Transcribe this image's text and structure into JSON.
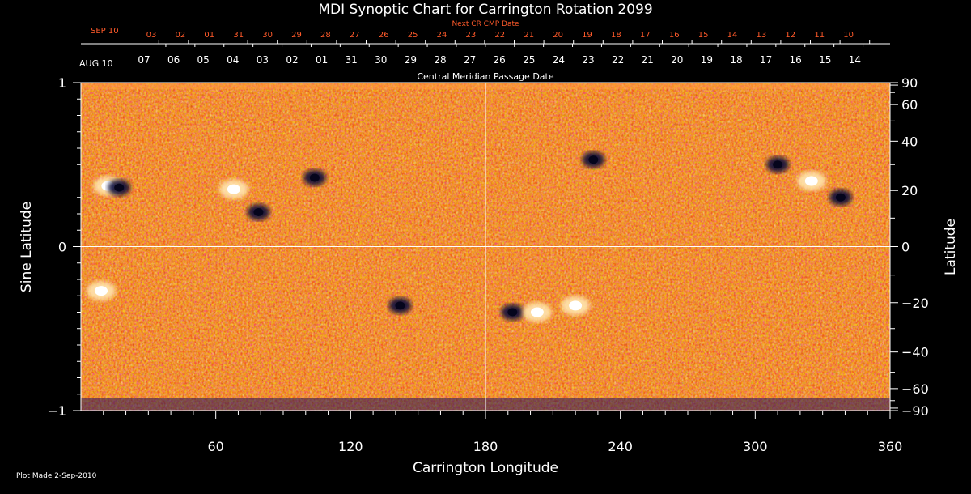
{
  "chart_data": {
    "type": "heatmap",
    "title": "MDI Synoptic Chart for Carrington Rotation 2099",
    "xlabel": "Carrington Longitude",
    "ylabel_left": "Sine Latitude",
    "ylabel_right": "Latitude",
    "xlim": [
      0,
      360
    ],
    "ylim": [
      -1,
      1
    ],
    "x_ticks": [
      60,
      120,
      180,
      240,
      300,
      360
    ],
    "y_ticks_left": [
      -1,
      0,
      1
    ],
    "y_ticks_left_labels": [
      "−1",
      "0",
      "1"
    ],
    "y_ticks_right": [
      90,
      60,
      40,
      20,
      0,
      -20,
      -40,
      -60,
      -90
    ],
    "y_ticks_right_labels": [
      "90",
      "60",
      "40",
      "20",
      "0",
      "−20",
      "−40",
      "−60",
      "−90"
    ],
    "colormap": [
      "#0a0a40",
      "#d42a00",
      "#ff7a1a",
      "#ffd270",
      "#ffffff"
    ],
    "grid_lines": {
      "longitude": 180,
      "sine_latitude": 0
    },
    "top_axis_primary": {
      "label": "Central Meridian Passage Date",
      "start_label": "AUG 10",
      "labels": [
        "07",
        "06",
        "05",
        "04",
        "03",
        "02",
        "01",
        "31",
        "30",
        "29",
        "28",
        "27",
        "26",
        "25",
        "24",
        "23",
        "22",
        "21",
        "20",
        "19",
        "18",
        "17",
        "16",
        "15",
        "14"
      ]
    },
    "top_axis_secondary": {
      "label": "Next CR CMP Date",
      "start_label": "SEP 10",
      "labels": [
        "03",
        "02",
        "01",
        "31",
        "30",
        "29",
        "28",
        "27",
        "26",
        "25",
        "24",
        "23",
        "22",
        "21",
        "20",
        "19",
        "18",
        "17",
        "16",
        "15",
        "14",
        "13",
        "12",
        "11",
        "10"
      ]
    },
    "active_regions": [
      {
        "lon": 12,
        "sinlat": 0.37,
        "polarity": "positive"
      },
      {
        "lon": 17,
        "sinlat": 0.36,
        "polarity": "negative"
      },
      {
        "lon": 68,
        "sinlat": 0.35,
        "polarity": "positive"
      },
      {
        "lon": 79,
        "sinlat": 0.21,
        "polarity": "negative"
      },
      {
        "lon": 104,
        "sinlat": 0.42,
        "polarity": "negative"
      },
      {
        "lon": 9,
        "sinlat": -0.27,
        "polarity": "positive"
      },
      {
        "lon": 142,
        "sinlat": -0.36,
        "polarity": "negative"
      },
      {
        "lon": 192,
        "sinlat": -0.4,
        "polarity": "negative"
      },
      {
        "lon": 203,
        "sinlat": -0.4,
        "polarity": "positive"
      },
      {
        "lon": 220,
        "sinlat": -0.36,
        "polarity": "positive"
      },
      {
        "lon": 325,
        "sinlat": 0.4,
        "polarity": "positive"
      },
      {
        "lon": 338,
        "sinlat": 0.3,
        "polarity": "negative"
      },
      {
        "lon": 228,
        "sinlat": 0.53,
        "polarity": "negative"
      },
      {
        "lon": 310,
        "sinlat": 0.5,
        "polarity": "negative"
      }
    ]
  },
  "footer": {
    "plot_made": "Plot Made  2-Sep-2010"
  }
}
